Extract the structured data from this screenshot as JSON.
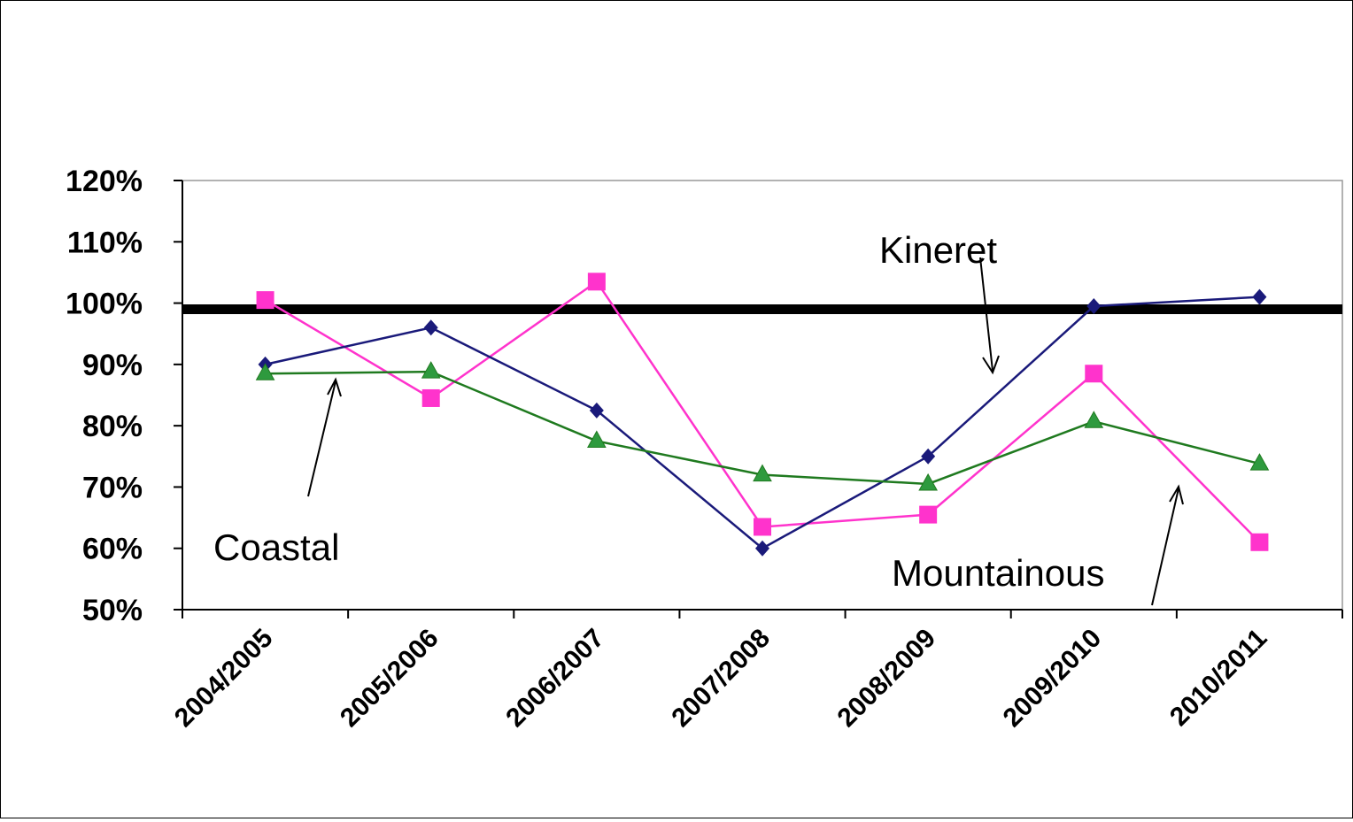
{
  "chart_data": {
    "type": "line",
    "categories": [
      "2004/2005",
      "2005/2006",
      "2006/2007",
      "2007/2008",
      "2008/2009",
      "2009/2010",
      "2010/2011"
    ],
    "ylim": [
      50,
      120
    ],
    "y_ticks": [
      50,
      60,
      70,
      80,
      90,
      100,
      110,
      120
    ],
    "y_tick_labels": [
      "50%",
      "60%",
      "70%",
      "80%",
      "90%",
      "100%",
      "110%",
      "120%"
    ],
    "grid": false,
    "legend": "none",
    "reference_line": {
      "y": 99,
      "color": "#000000"
    },
    "series": [
      {
        "name": "Kineret",
        "color": "#1a1a7a",
        "marker": "diamond",
        "values": [
          90,
          96,
          82.5,
          60,
          75,
          99.5,
          101
        ]
      },
      {
        "name": "",
        "color": "#ff33cc",
        "marker": "square",
        "values": [
          100.5,
          84.5,
          103.5,
          63.5,
          65.5,
          88.5,
          61
        ]
      },
      {
        "name": "Coastal",
        "color": "#1f7a1f",
        "marker": "triangle",
        "values": [
          88.5,
          88.8,
          77.5,
          72,
          70.5,
          80.7,
          73.8
        ]
      }
    ],
    "annotations": [
      {
        "text": "Kineret",
        "series": 0
      },
      {
        "text": "Coastal",
        "series": 2
      },
      {
        "text": "Mountainous",
        "series": 1
      }
    ]
  }
}
